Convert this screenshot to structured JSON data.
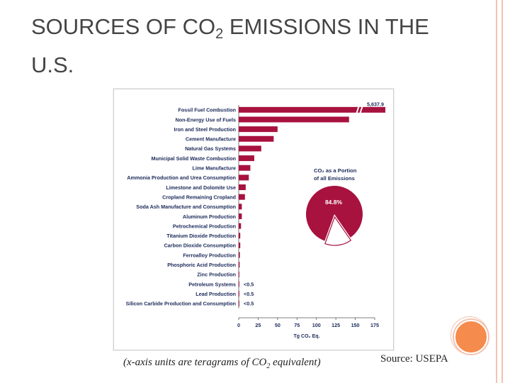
{
  "slide": {
    "title_part1": "SOURCES OF CO",
    "title_sub": "2",
    "title_part2": " EMISSIONS IN THE U.S.",
    "caption_part1": "(x-axis units are teragrams of CO",
    "caption_sub": "2",
    "caption_part2": " equivalent)",
    "source": "Source: USEPA"
  },
  "colors": {
    "bar": "#a8123f",
    "frame": "#f2c3b0",
    "accent_circle": "#f58b4c"
  },
  "chart_data": {
    "type": "bar",
    "orientation": "horizontal",
    "categories": [
      "Fossil Fuel Combustion",
      "Non-Energy Use of Fuels",
      "Iron and Steel Production",
      "Cement Manufacture",
      "Natural Gas Systems",
      "Municipal Solid Waste Combustion",
      "Lime Manufacture",
      "Ammonia Production and Urea Consumption",
      "Limestone and Dolomite Use",
      "Cropland Remaining Cropland",
      "Soda Ash Manufacture and Consumption",
      "Aluminum Production",
      "Petrochemical Production",
      "Titanium Dioxide Production",
      "Carbon Dioxide Consumption",
      "Ferroalloy Production",
      "Phosphoric Acid Production",
      "Zinc Production",
      "Petroleum Systems",
      "Lead Production",
      "Silicon Carbide Production and Consumption"
    ],
    "values": [
      5637.9,
      142,
      50,
      45,
      29,
      20,
      15,
      13,
      9,
      8,
      4,
      4,
      3,
      2,
      2,
      1.5,
      1.2,
      0.8,
      0.3,
      0.3,
      0.2
    ],
    "value_labels": [
      "5,637.9",
      "",
      "",
      "",
      "",
      "",
      "",
      "",
      "",
      "",
      "",
      "",
      "",
      "",
      "",
      "",
      "",
      "",
      "<0.5",
      "<0.5",
      "<0.5"
    ],
    "xlim": [
      0,
      175
    ],
    "xticks": [
      "0",
      "25",
      "50",
      "75",
      "100",
      "125",
      "150",
      "175"
    ],
    "xlabel": "Tg CO₂ Eq.",
    "axis_break_on_first_bar": true,
    "inset_pie": {
      "title_line1": "CO₂ as a Portion",
      "title_line2": "of all Emissions",
      "value_label": "84.8%",
      "fraction": 0.848
    }
  }
}
